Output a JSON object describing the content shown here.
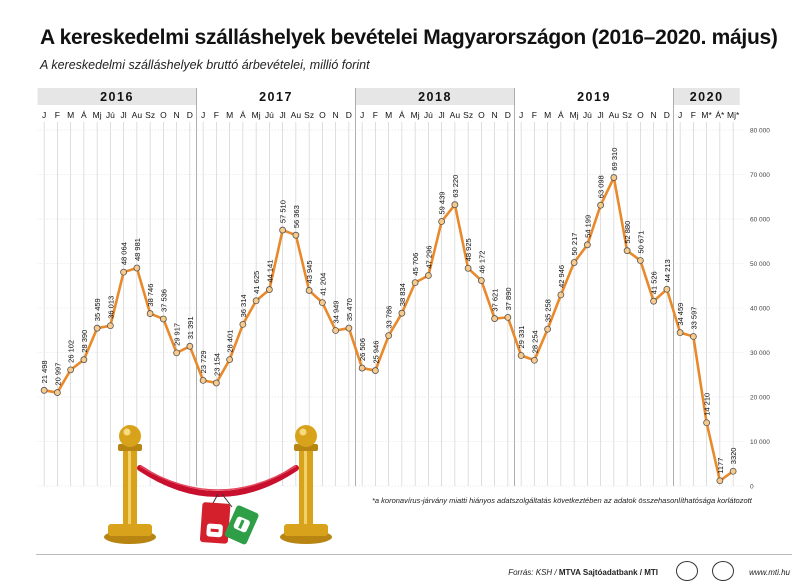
{
  "title": "A kereskedelmi szálláshelyek bevételei Magyarországon (2016–2020. május)",
  "subtitle": "A kereskedelmi szálláshelyek bruttó árbevételei, millió forint",
  "footnote": "*a koronavírus-járvány miatti hiányos adatszolgáltatás következtében az adatok összehasonlíthatósága korlátozott",
  "source_prefix": "Forrás: KSH / ",
  "source_bold": "MTVA Sajtóadatbank / MTI",
  "website": "www.mti.hu",
  "colors": {
    "line": "#e8892b",
    "marker_fill": "#f7c98a",
    "band_shade": "#e6e6e6",
    "grid": "#c8c8c8",
    "stanchion_gold": "#d8a21a",
    "rope": "#c8102e",
    "sign_red": "#d3202c",
    "sign_green": "#2e9e47"
  },
  "icons": [
    "stanchion-icon",
    "velvet-rope-icon",
    "closed-sign-icon",
    "open-sign-icon"
  ],
  "chart_data": {
    "type": "line",
    "title": "A kereskedelmi szálláshelyek bevételei Magyarországon (2016–2020. május)",
    "ylabel": "",
    "ylim": [
      0,
      80000
    ],
    "y_ticks": [
      "0",
      "10 000",
      "20 000",
      "30 000",
      "40 000",
      "50 000",
      "60 000",
      "70 000",
      "80 000"
    ],
    "grid": true,
    "legend": "none",
    "years": [
      "2016",
      "2017",
      "2018",
      "2019",
      "2020"
    ],
    "month_labels": [
      "J",
      "F",
      "M",
      "Á",
      "Mj",
      "Jú",
      "Jl",
      "Au",
      "Sz",
      "O",
      "N",
      "D"
    ],
    "month_labels_2020": [
      "J",
      "F",
      "M*",
      "Á*",
      "Mj*"
    ],
    "values": [
      21498,
      20997,
      26102,
      28390,
      35459,
      36013,
      48064,
      48981,
      38746,
      37536,
      29917,
      31391,
      23729,
      23154,
      28401,
      36314,
      41625,
      44141,
      57510,
      56363,
      43945,
      41204,
      34949,
      35470,
      26506,
      25946,
      33786,
      38834,
      45706,
      47296,
      59439,
      63220,
      48925,
      46172,
      37621,
      37890,
      29331,
      28254,
      35258,
      42946,
      50217,
      54199,
      63098,
      69310,
      52880,
      50671,
      41526,
      44213,
      34459,
      33597,
      14210,
      1177,
      3320
    ],
    "labels": [
      "21 498",
      "20 997",
      "26 102",
      "28 390",
      "35 459",
      "36 013",
      "48 064",
      "48 981",
      "38 746",
      "37 536",
      "29 917",
      "31 391",
      "23 729",
      "23 154",
      "28 401",
      "36 314",
      "41 625",
      "44 141",
      "57 510",
      "56 363",
      "43 945",
      "41 204",
      "34 949",
      "35 470",
      "26 506",
      "25 946",
      "33 786",
      "38 834",
      "45 706",
      "47 296",
      "59 439",
      "63 220",
      "48 925",
      "46 172",
      "37 621",
      "37 890",
      "29 331",
      "28 254",
      "35 258",
      "42 946",
      "50 217",
      "54 199",
      "63 098",
      "69 310",
      "52 880",
      "50 671",
      "41 526",
      "44 213",
      "34 459",
      "33 597",
      "14 210",
      "1177",
      "3320"
    ]
  }
}
